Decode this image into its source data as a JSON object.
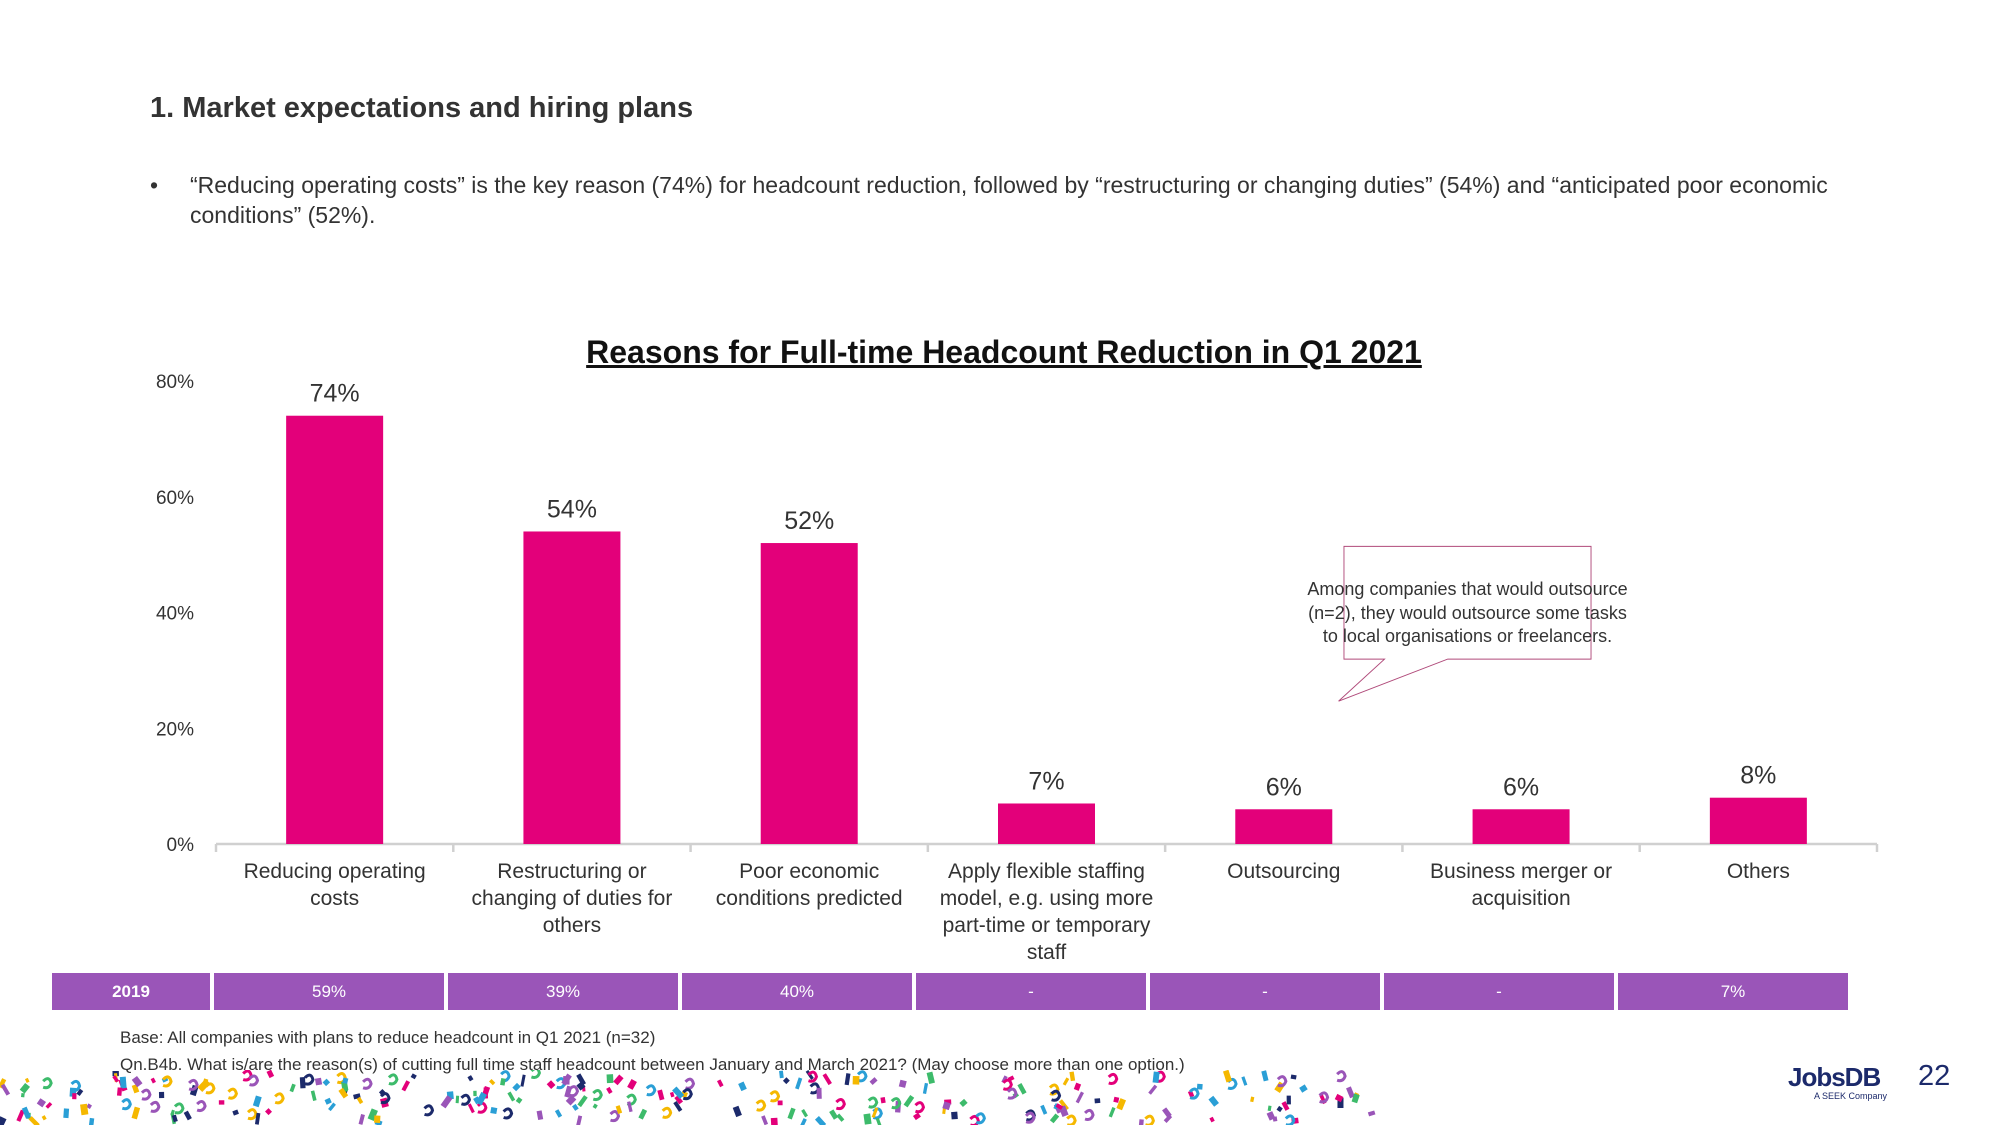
{
  "header": {
    "title": "1. Market expectations and hiring plans",
    "bullet": "“Reducing operating costs” is the key reason (74%) for headcount reduction, followed by “restructuring or changing duties” (54%) and “anticipated poor economic conditions” (52%).",
    "bullet_symbol": "•"
  },
  "chart_data": {
    "type": "bar",
    "title": "Reasons for Full-time Headcount Reduction in Q1 2021",
    "categories": [
      "Reducing operating costs",
      "Restructuring or changing of duties for others",
      "Poor economic conditions predicted",
      "Apply flexible staffing model, e.g. using more part-time or temporary staff",
      "Outsourcing",
      "Business merger or acquisition",
      "Others"
    ],
    "values": [
      74,
      54,
      52,
      7,
      6,
      6,
      8
    ],
    "data_labels": [
      "74%",
      "54%",
      "52%",
      "7%",
      "6%",
      "6%",
      "8%"
    ],
    "yticks": [
      "0%",
      "20%",
      "40%",
      "60%",
      "80%"
    ],
    "ylim": [
      0,
      80
    ],
    "grid": false,
    "bar_color": "#e3007a",
    "comparison_row": {
      "label": "2019",
      "values": [
        "59%",
        "39%",
        "40%",
        "-",
        "-",
        "-",
        "7%"
      ],
      "color": "#9a55b8"
    },
    "annotation": "Among companies that would outsource (n=2), they would outsource some tasks to local organisations or freelancers."
  },
  "footer": {
    "base": "Base: All companies with plans to reduce headcount in Q1 2021 (n=32)",
    "question": "Qn.B4b. What is/are the reason(s) of cutting full time staff headcount between January and March 2021? (May choose more than one option.)",
    "logo": "JobsDB",
    "logo_sub": "A SEEK Company",
    "page_number": "22"
  }
}
